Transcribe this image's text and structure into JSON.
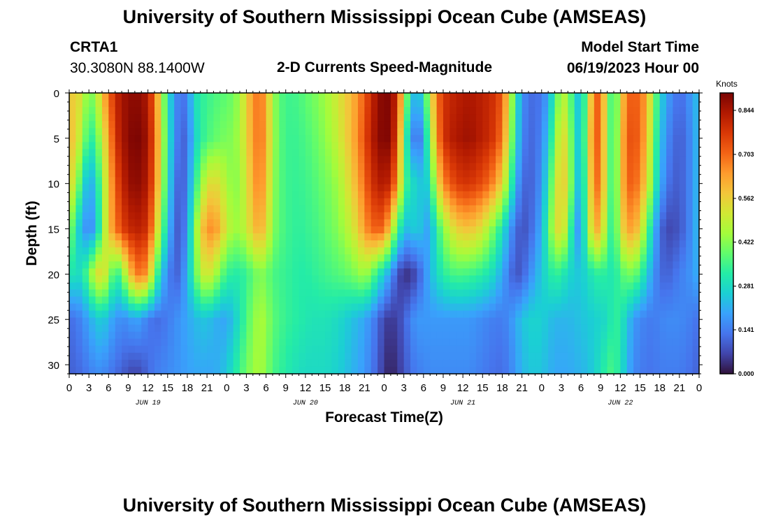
{
  "header": {
    "title": "University of Southern Mississippi Ocean Cube (AMSEAS)",
    "station": "CRTA1",
    "coords": "30.3080N  88.1400W",
    "chart_title": "2-D Currents Speed-Magnitude",
    "model_start_label": "Model Start Time",
    "model_start_value": "06/19/2023 Hour 00"
  },
  "footer": {
    "title": "University of Southern Mississippi Ocean Cube (AMSEAS)"
  },
  "chart_data": {
    "type": "heatmap",
    "title": "2-D Currents Speed-Magnitude",
    "xlabel": "Forecast Time(Z)",
    "ylabel": "Depth (ft)",
    "x_unit": "hours since 06/19/2023 00Z",
    "xlim": [
      0,
      96
    ],
    "ylim": [
      0,
      31
    ],
    "y_inverted": true,
    "x_ticks": [
      0,
      3,
      6,
      9,
      12,
      15,
      18,
      21,
      24,
      27,
      30,
      33,
      36,
      39,
      42,
      45,
      48,
      51,
      54,
      57,
      60,
      63,
      66,
      69,
      72,
      75,
      78,
      81,
      84,
      87,
      90,
      93,
      96
    ],
    "x_tick_labels": [
      "0",
      "3",
      "6",
      "9",
      "12",
      "15",
      "18",
      "21",
      "0",
      "3",
      "6",
      "9",
      "12",
      "15",
      "18",
      "21",
      "0",
      "3",
      "6",
      "9",
      "12",
      "15",
      "18",
      "21",
      "0",
      "3",
      "6",
      "9",
      "12",
      "15",
      "18",
      "21",
      "0"
    ],
    "day_labels": [
      {
        "hour": 12,
        "label": "JUN 19"
      },
      {
        "hour": 36,
        "label": "JUN 20"
      },
      {
        "hour": 60,
        "label": "JUN 21"
      },
      {
        "hour": 84,
        "label": "JUN 22"
      }
    ],
    "y_ticks": [
      0,
      5,
      10,
      15,
      20,
      25,
      30
    ],
    "y_tick_labels": [
      "0",
      "5",
      "10",
      "15",
      "20",
      "25",
      "30"
    ],
    "colorbar": {
      "unit": "Knots",
      "range": [
        0.0,
        0.9
      ],
      "ticks": [
        0.0,
        0.141,
        0.281,
        0.422,
        0.562,
        0.703,
        0.844
      ],
      "tick_labels": [
        "0.000",
        "0.141",
        "0.281",
        "0.422",
        "0.562",
        "0.703",
        "0.844"
      ],
      "colormap": [
        "#30123b",
        "#4145ab",
        "#4675ed",
        "#39a2fc",
        "#1bcfd4",
        "#24eca6",
        "#61fc6c",
        "#a4fc3b",
        "#d1e834",
        "#f3c63a",
        "#fe9b2d",
        "#f36315",
        "#d93806",
        "#b11901",
        "#7a0403"
      ]
    },
    "depths_ft": [
      0,
      5,
      10,
      15,
      20,
      25,
      31
    ],
    "time_hours": [
      0,
      1,
      2,
      3,
      4,
      5,
      6,
      7,
      8,
      9,
      10,
      11,
      12,
      13,
      14,
      15,
      16,
      17,
      18,
      19,
      20,
      21,
      22,
      23,
      24,
      25,
      26,
      27,
      28,
      29,
      30,
      31,
      32,
      33,
      34,
      35,
      36,
      37,
      38,
      39,
      40,
      41,
      42,
      43,
      44,
      45,
      46,
      47,
      48,
      49,
      50,
      51,
      52,
      53,
      54,
      55,
      56,
      57,
      58,
      59,
      60,
      61,
      62,
      63,
      64,
      65,
      66,
      67,
      68,
      69,
      70,
      71,
      72,
      73,
      74,
      75,
      76,
      77,
      78,
      79,
      80,
      81,
      82,
      83,
      84,
      85,
      86,
      87,
      88,
      89,
      90,
      91,
      92,
      93,
      94,
      95,
      96
    ],
    "speed_knots": [
      [
        0.55,
        0.58,
        0.5,
        0.4,
        0.45,
        0.58,
        0.7,
        0.8,
        0.85,
        0.87,
        0.88,
        0.87,
        0.83,
        0.7,
        0.5,
        0.3,
        0.18,
        0.12,
        0.15,
        0.28,
        0.33,
        0.34,
        0.36,
        0.37,
        0.38,
        0.4,
        0.45,
        0.56,
        0.65,
        0.7,
        0.62,
        0.45,
        0.38,
        0.35,
        0.35,
        0.36,
        0.38,
        0.4,
        0.42,
        0.45,
        0.48,
        0.52,
        0.56,
        0.6,
        0.65,
        0.72,
        0.8,
        0.86,
        0.9,
        0.88,
        0.8,
        0.5,
        0.28,
        0.2,
        0.3,
        0.5,
        0.68,
        0.78,
        0.8,
        0.82,
        0.83,
        0.84,
        0.83,
        0.82,
        0.8,
        0.78,
        0.72,
        0.55,
        0.32,
        0.18,
        0.12,
        0.12,
        0.13,
        0.2,
        0.33,
        0.48,
        0.45,
        0.28,
        0.22,
        0.45,
        0.7,
        0.72,
        0.45,
        0.3,
        0.52,
        0.7,
        0.72,
        0.7,
        0.62,
        0.45,
        0.28,
        0.2,
        0.15,
        0.12,
        0.14,
        0.2,
        0.24
      ],
      [
        0.6,
        0.55,
        0.45,
        0.32,
        0.35,
        0.5,
        0.62,
        0.78,
        0.84,
        0.88,
        0.9,
        0.89,
        0.85,
        0.72,
        0.52,
        0.32,
        0.18,
        0.1,
        0.12,
        0.25,
        0.32,
        0.36,
        0.38,
        0.4,
        0.41,
        0.42,
        0.46,
        0.55,
        0.64,
        0.7,
        0.63,
        0.46,
        0.38,
        0.35,
        0.34,
        0.35,
        0.36,
        0.38,
        0.4,
        0.43,
        0.46,
        0.5,
        0.55,
        0.6,
        0.66,
        0.74,
        0.82,
        0.87,
        0.9,
        0.88,
        0.75,
        0.4,
        0.2,
        0.1,
        0.2,
        0.42,
        0.64,
        0.78,
        0.82,
        0.84,
        0.85,
        0.86,
        0.84,
        0.82,
        0.8,
        0.76,
        0.68,
        0.5,
        0.3,
        0.16,
        0.11,
        0.12,
        0.15,
        0.25,
        0.4,
        0.55,
        0.5,
        0.3,
        0.22,
        0.48,
        0.72,
        0.7,
        0.45,
        0.3,
        0.55,
        0.72,
        0.74,
        0.7,
        0.6,
        0.42,
        0.25,
        0.17,
        0.12,
        0.1,
        0.12,
        0.18,
        0.24
      ],
      [
        0.55,
        0.48,
        0.3,
        0.2,
        0.25,
        0.42,
        0.58,
        0.72,
        0.8,
        0.86,
        0.88,
        0.87,
        0.83,
        0.7,
        0.5,
        0.3,
        0.15,
        0.08,
        0.15,
        0.3,
        0.42,
        0.52,
        0.55,
        0.52,
        0.46,
        0.42,
        0.44,
        0.52,
        0.62,
        0.68,
        0.6,
        0.44,
        0.38,
        0.35,
        0.34,
        0.34,
        0.35,
        0.36,
        0.38,
        0.4,
        0.42,
        0.45,
        0.5,
        0.56,
        0.62,
        0.7,
        0.78,
        0.82,
        0.84,
        0.8,
        0.65,
        0.4,
        0.28,
        0.28,
        0.22,
        0.3,
        0.52,
        0.66,
        0.72,
        0.76,
        0.78,
        0.78,
        0.76,
        0.74,
        0.7,
        0.64,
        0.55,
        0.4,
        0.22,
        0.12,
        0.1,
        0.12,
        0.18,
        0.3,
        0.48,
        0.58,
        0.52,
        0.3,
        0.2,
        0.45,
        0.7,
        0.68,
        0.45,
        0.3,
        0.55,
        0.7,
        0.72,
        0.66,
        0.55,
        0.38,
        0.22,
        0.14,
        0.1,
        0.1,
        0.12,
        0.18,
        0.24
      ],
      [
        0.45,
        0.3,
        0.2,
        0.15,
        0.2,
        0.4,
        0.58,
        0.68,
        0.75,
        0.8,
        0.82,
        0.82,
        0.78,
        0.62,
        0.42,
        0.25,
        0.12,
        0.08,
        0.18,
        0.38,
        0.55,
        0.65,
        0.66,
        0.6,
        0.5,
        0.45,
        0.45,
        0.5,
        0.58,
        0.62,
        0.56,
        0.42,
        0.38,
        0.35,
        0.34,
        0.33,
        0.34,
        0.35,
        0.36,
        0.38,
        0.4,
        0.42,
        0.46,
        0.5,
        0.56,
        0.64,
        0.7,
        0.72,
        0.7,
        0.55,
        0.35,
        0.25,
        0.22,
        0.28,
        0.2,
        0.2,
        0.32,
        0.42,
        0.5,
        0.55,
        0.58,
        0.58,
        0.56,
        0.52,
        0.45,
        0.38,
        0.3,
        0.2,
        0.12,
        0.08,
        0.1,
        0.14,
        0.22,
        0.35,
        0.52,
        0.55,
        0.45,
        0.2,
        0.18,
        0.42,
        0.62,
        0.6,
        0.4,
        0.3,
        0.52,
        0.62,
        0.64,
        0.55,
        0.4,
        0.25,
        0.12,
        0.07,
        0.07,
        0.09,
        0.12,
        0.18,
        0.24
      ],
      [
        0.32,
        0.28,
        0.3,
        0.4,
        0.52,
        0.56,
        0.45,
        0.32,
        0.38,
        0.55,
        0.66,
        0.7,
        0.62,
        0.42,
        0.25,
        0.16,
        0.1,
        0.12,
        0.22,
        0.35,
        0.48,
        0.52,
        0.48,
        0.4,
        0.34,
        0.32,
        0.32,
        0.34,
        0.38,
        0.42,
        0.4,
        0.36,
        0.35,
        0.34,
        0.33,
        0.32,
        0.32,
        0.33,
        0.34,
        0.35,
        0.36,
        0.37,
        0.38,
        0.4,
        0.42,
        0.45,
        0.4,
        0.32,
        0.25,
        0.18,
        0.08,
        0.04,
        0.04,
        0.08,
        0.15,
        0.22,
        0.28,
        0.32,
        0.35,
        0.36,
        0.36,
        0.35,
        0.34,
        0.32,
        0.3,
        0.26,
        0.2,
        0.14,
        0.08,
        0.1,
        0.15,
        0.2,
        0.25,
        0.3,
        0.34,
        0.32,
        0.28,
        0.25,
        0.25,
        0.28,
        0.32,
        0.33,
        0.32,
        0.3,
        0.36,
        0.4,
        0.4,
        0.35,
        0.26,
        0.18,
        0.12,
        0.1,
        0.12,
        0.14,
        0.16,
        0.18,
        0.22
      ],
      [
        0.12,
        0.13,
        0.16,
        0.2,
        0.24,
        0.26,
        0.22,
        0.18,
        0.16,
        0.17,
        0.2,
        0.18,
        0.14,
        0.12,
        0.12,
        0.14,
        0.16,
        0.18,
        0.2,
        0.22,
        0.24,
        0.24,
        0.22,
        0.2,
        0.2,
        0.24,
        0.3,
        0.36,
        0.42,
        0.46,
        0.44,
        0.38,
        0.36,
        0.34,
        0.33,
        0.32,
        0.31,
        0.3,
        0.3,
        0.3,
        0.29,
        0.28,
        0.26,
        0.24,
        0.22,
        0.2,
        0.16,
        0.12,
        0.06,
        0.05,
        0.06,
        0.1,
        0.15,
        0.18,
        0.18,
        0.18,
        0.18,
        0.18,
        0.18,
        0.18,
        0.18,
        0.18,
        0.17,
        0.16,
        0.15,
        0.14,
        0.14,
        0.16,
        0.2,
        0.24,
        0.26,
        0.27,
        0.26,
        0.24,
        0.22,
        0.22,
        0.22,
        0.23,
        0.24,
        0.25,
        0.26,
        0.27,
        0.28,
        0.34,
        0.32,
        0.25,
        0.18,
        0.16,
        0.14,
        0.14,
        0.15,
        0.16,
        0.16,
        0.16,
        0.15,
        0.14,
        0.12
      ],
      [
        0.1,
        0.11,
        0.12,
        0.14,
        0.16,
        0.16,
        0.14,
        0.12,
        0.1,
        0.08,
        0.06,
        0.08,
        0.11,
        0.14,
        0.15,
        0.16,
        0.17,
        0.18,
        0.19,
        0.2,
        0.2,
        0.2,
        0.2,
        0.22,
        0.25,
        0.3,
        0.35,
        0.4,
        0.44,
        0.46,
        0.42,
        0.36,
        0.34,
        0.32,
        0.3,
        0.29,
        0.28,
        0.28,
        0.28,
        0.28,
        0.27,
        0.26,
        0.24,
        0.22,
        0.2,
        0.18,
        0.14,
        0.1,
        0.04,
        0.02,
        0.04,
        0.08,
        0.12,
        0.14,
        0.15,
        0.16,
        0.16,
        0.16,
        0.16,
        0.16,
        0.16,
        0.16,
        0.15,
        0.14,
        0.13,
        0.12,
        0.12,
        0.14,
        0.18,
        0.22,
        0.24,
        0.25,
        0.24,
        0.22,
        0.2,
        0.2,
        0.2,
        0.21,
        0.22,
        0.23,
        0.26,
        0.3,
        0.35,
        0.36,
        0.3,
        0.22,
        0.16,
        0.14,
        0.13,
        0.13,
        0.14,
        0.14,
        0.14,
        0.14,
        0.13,
        0.12,
        0.1
      ]
    ]
  }
}
